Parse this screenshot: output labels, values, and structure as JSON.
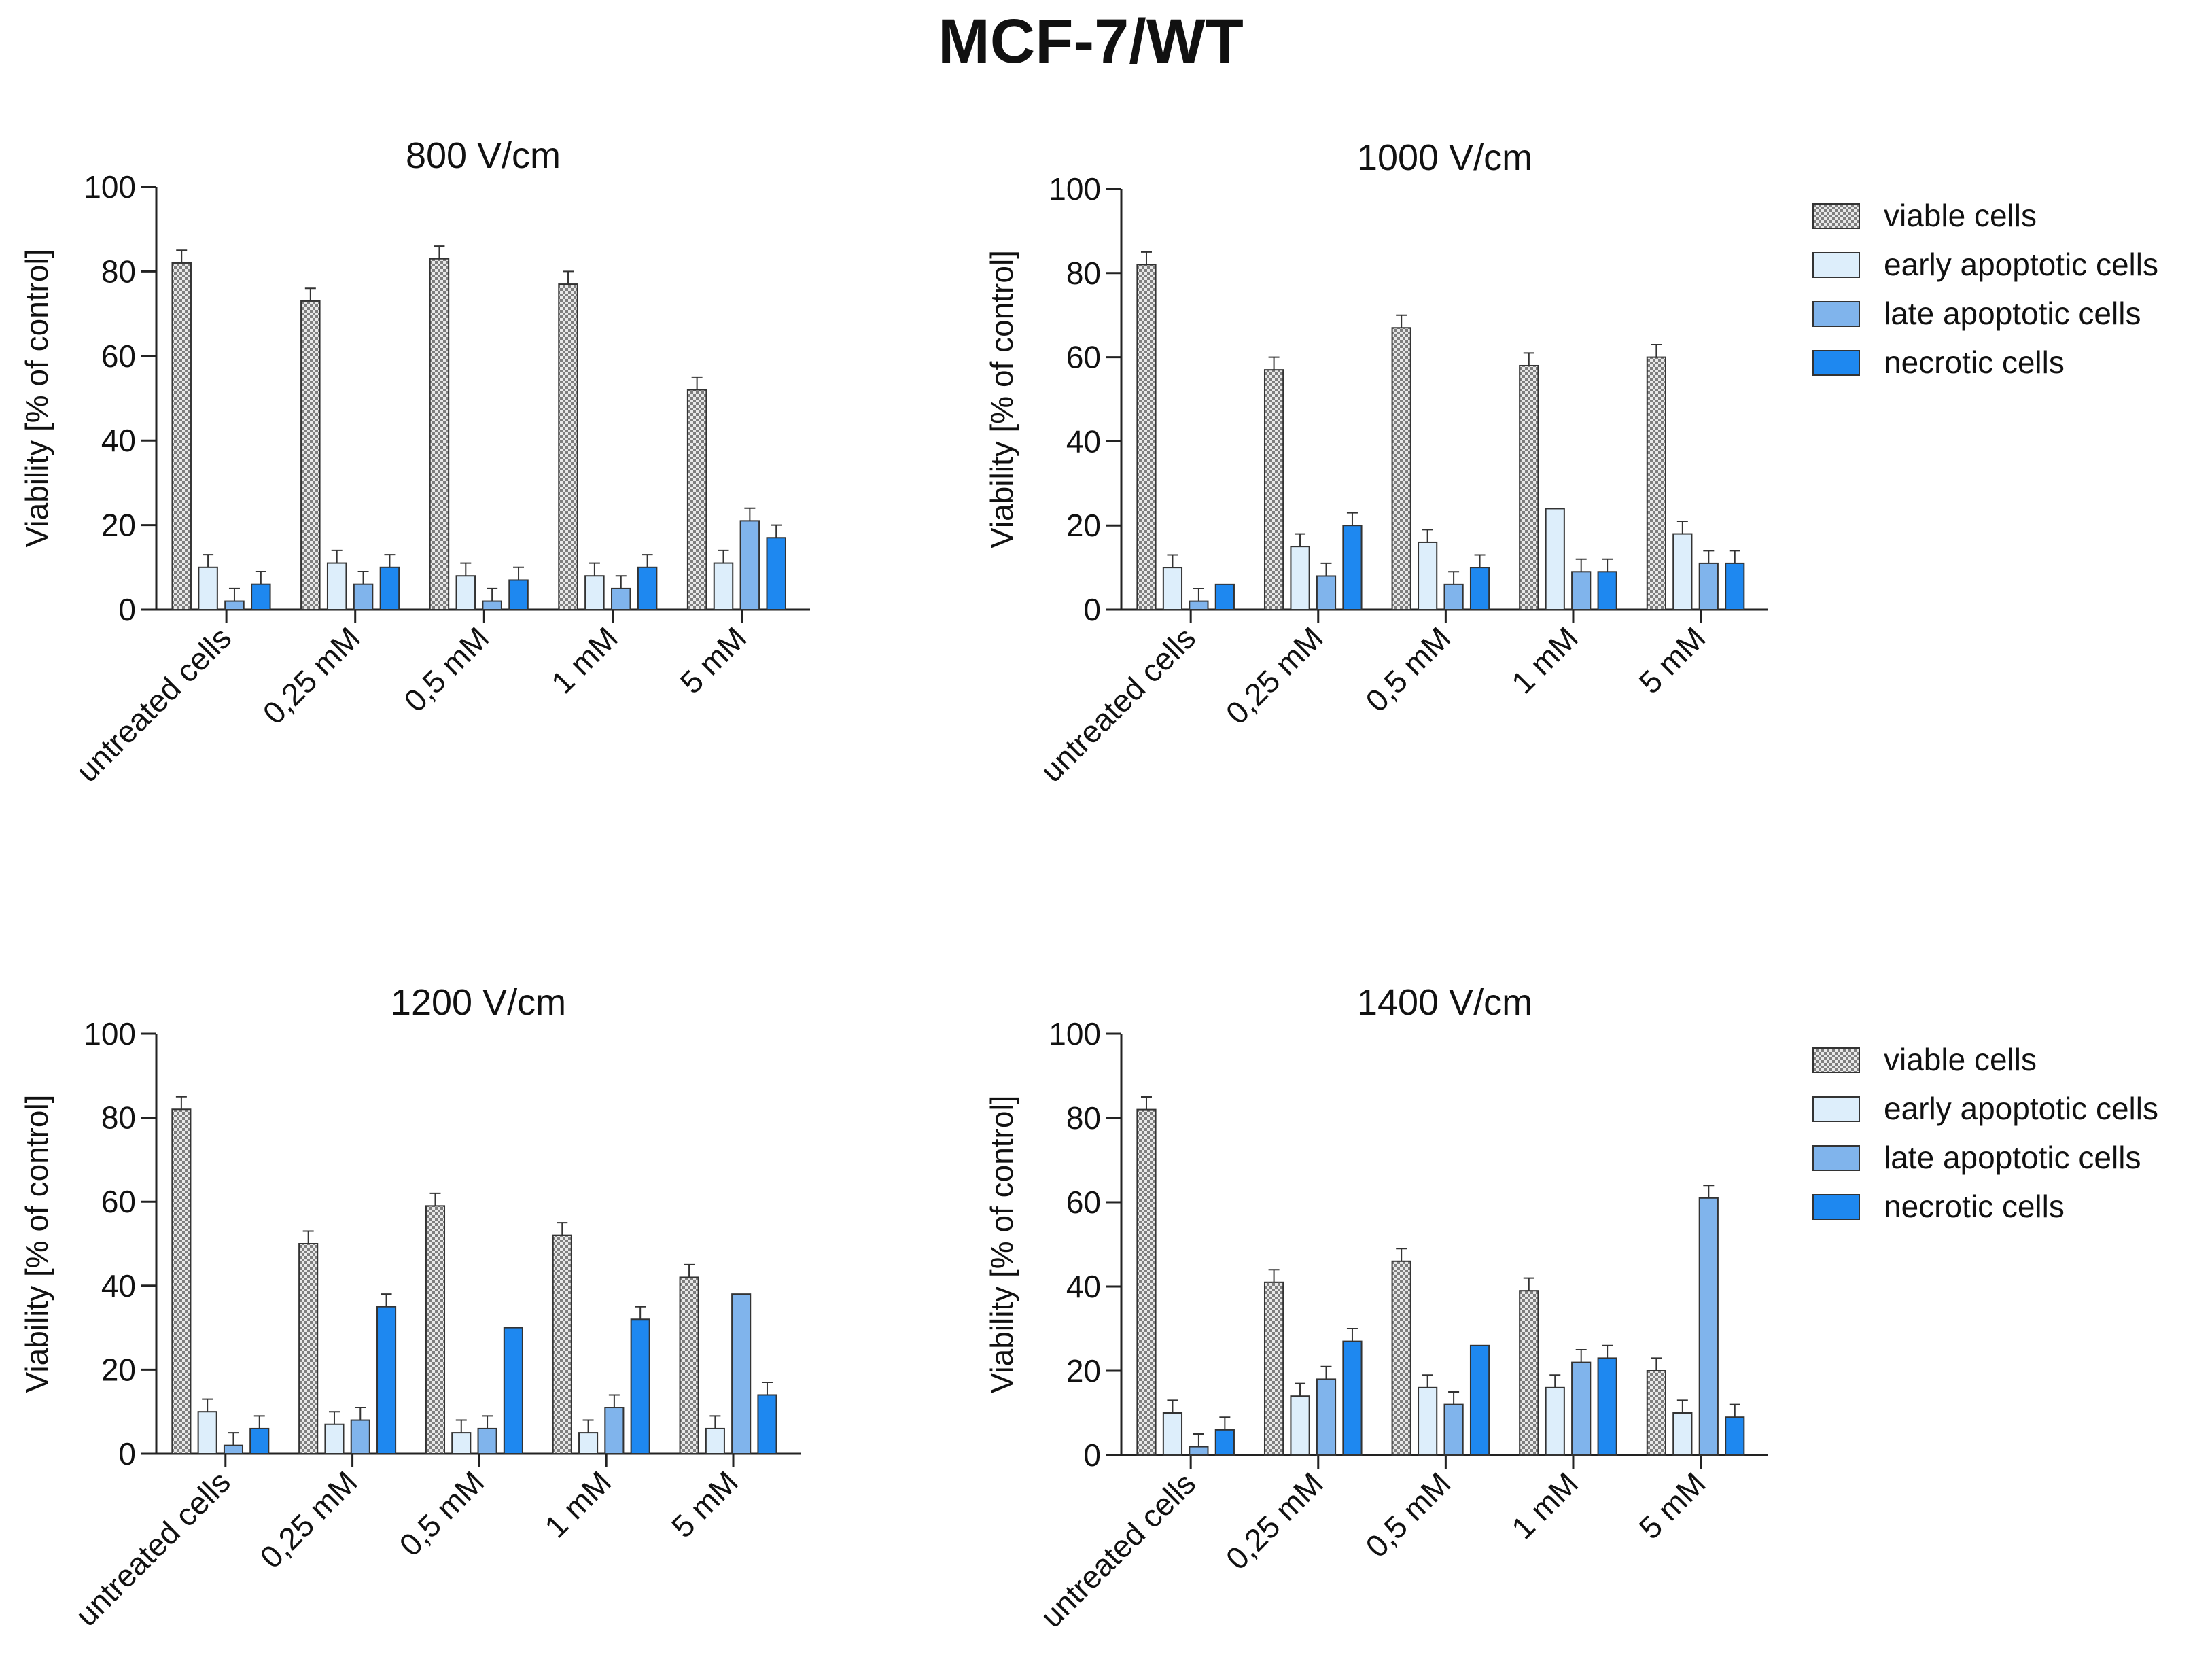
{
  "figure_title": "MCF-7/WT",
  "legend": {
    "items": [
      "viable cells",
      "early apoptotic cells",
      "late apoptotic cells",
      "necrotic cells"
    ]
  },
  "colors": {
    "viable": "#9a9a9a",
    "early": "#ddeefb",
    "late": "#80b4ec",
    "necrotic": "#1e88f0",
    "axis": "#222222"
  },
  "chart_data": [
    {
      "type": "bar",
      "title": "800 V/cm",
      "xlabel": "",
      "ylabel": "Viability [% of control]",
      "ylim": [
        0,
        100
      ],
      "yticks": [
        0,
        20,
        40,
        60,
        80,
        100
      ],
      "categories": [
        "untreated cells",
        "0,25 mM",
        "0,5 mM",
        "1 mM",
        "5 mM"
      ],
      "series": [
        {
          "name": "viable cells",
          "values": [
            82,
            73,
            83,
            77,
            52
          ],
          "errors": [
            3,
            3,
            3,
            3,
            3
          ]
        },
        {
          "name": "early apoptotic cells",
          "values": [
            10,
            11,
            8,
            8,
            11
          ],
          "errors": [
            3,
            3,
            3,
            3,
            3
          ]
        },
        {
          "name": "late apoptotic cells",
          "values": [
            2,
            6,
            2,
            5,
            21
          ],
          "errors": [
            3,
            3,
            3,
            3,
            3
          ]
        },
        {
          "name": "necrotic cells",
          "values": [
            6,
            10,
            7,
            10,
            17
          ],
          "errors": [
            3,
            3,
            3,
            3,
            3
          ]
        }
      ]
    },
    {
      "type": "bar",
      "title": "1000 V/cm",
      "xlabel": "",
      "ylabel": "Viability [% of control]",
      "ylim": [
        0,
        100
      ],
      "yticks": [
        0,
        20,
        40,
        60,
        80,
        100
      ],
      "categories": [
        "untreated cells",
        "0,25 mM",
        "0,5 mM",
        "1 mM",
        "5 mM"
      ],
      "series": [
        {
          "name": "viable cells",
          "values": [
            82,
            57,
            67,
            58,
            60
          ],
          "errors": [
            3,
            3,
            3,
            3,
            3
          ]
        },
        {
          "name": "early apoptotic cells",
          "values": [
            10,
            15,
            16,
            24,
            18
          ],
          "errors": [
            3,
            3,
            3,
            0,
            3
          ]
        },
        {
          "name": "late apoptotic cells",
          "values": [
            2,
            8,
            6,
            9,
            11
          ],
          "errors": [
            3,
            3,
            3,
            3,
            3
          ]
        },
        {
          "name": "necrotic cells",
          "values": [
            6,
            20,
            10,
            9,
            11
          ],
          "errors": [
            0,
            3,
            3,
            3,
            3
          ]
        }
      ]
    },
    {
      "type": "bar",
      "title": "1200 V/cm",
      "xlabel": "",
      "ylabel": "Viability [% of control]",
      "ylim": [
        0,
        100
      ],
      "yticks": [
        0,
        20,
        40,
        60,
        80,
        100
      ],
      "categories": [
        "untreated cells",
        "0,25 mM",
        "0,5 mM",
        "1 mM",
        "5 mM"
      ],
      "series": [
        {
          "name": "viable cells",
          "values": [
            82,
            50,
            59,
            52,
            42
          ],
          "errors": [
            3,
            3,
            3,
            3,
            3
          ]
        },
        {
          "name": "early apoptotic cells",
          "values": [
            10,
            7,
            5,
            5,
            6
          ],
          "errors": [
            3,
            3,
            3,
            3,
            3
          ]
        },
        {
          "name": "late apoptotic cells",
          "values": [
            2,
            8,
            6,
            11,
            38
          ],
          "errors": [
            3,
            3,
            3,
            3,
            0
          ]
        },
        {
          "name": "necrotic cells",
          "values": [
            6,
            35,
            30,
            32,
            14
          ],
          "errors": [
            3,
            3,
            0,
            3,
            3
          ]
        }
      ]
    },
    {
      "type": "bar",
      "title": "1400 V/cm",
      "xlabel": "",
      "ylabel": "Viability [% of control]",
      "ylim": [
        0,
        100
      ],
      "yticks": [
        0,
        20,
        40,
        60,
        80,
        100
      ],
      "categories": [
        "untreated cells",
        "0,25 mM",
        "0,5 mM",
        "1 mM",
        "5 mM"
      ],
      "series": [
        {
          "name": "viable cells",
          "values": [
            82,
            41,
            46,
            39,
            20
          ],
          "errors": [
            3,
            3,
            3,
            3,
            3
          ]
        },
        {
          "name": "early apoptotic cells",
          "values": [
            10,
            14,
            16,
            16,
            10
          ],
          "errors": [
            3,
            3,
            3,
            3,
            3
          ]
        },
        {
          "name": "late apoptotic cells",
          "values": [
            2,
            18,
            12,
            22,
            61
          ],
          "errors": [
            3,
            3,
            3,
            3,
            3
          ]
        },
        {
          "name": "necrotic cells",
          "values": [
            6,
            27,
            26,
            23,
            9
          ],
          "errors": [
            3,
            3,
            0,
            3,
            3
          ]
        }
      ]
    }
  ]
}
